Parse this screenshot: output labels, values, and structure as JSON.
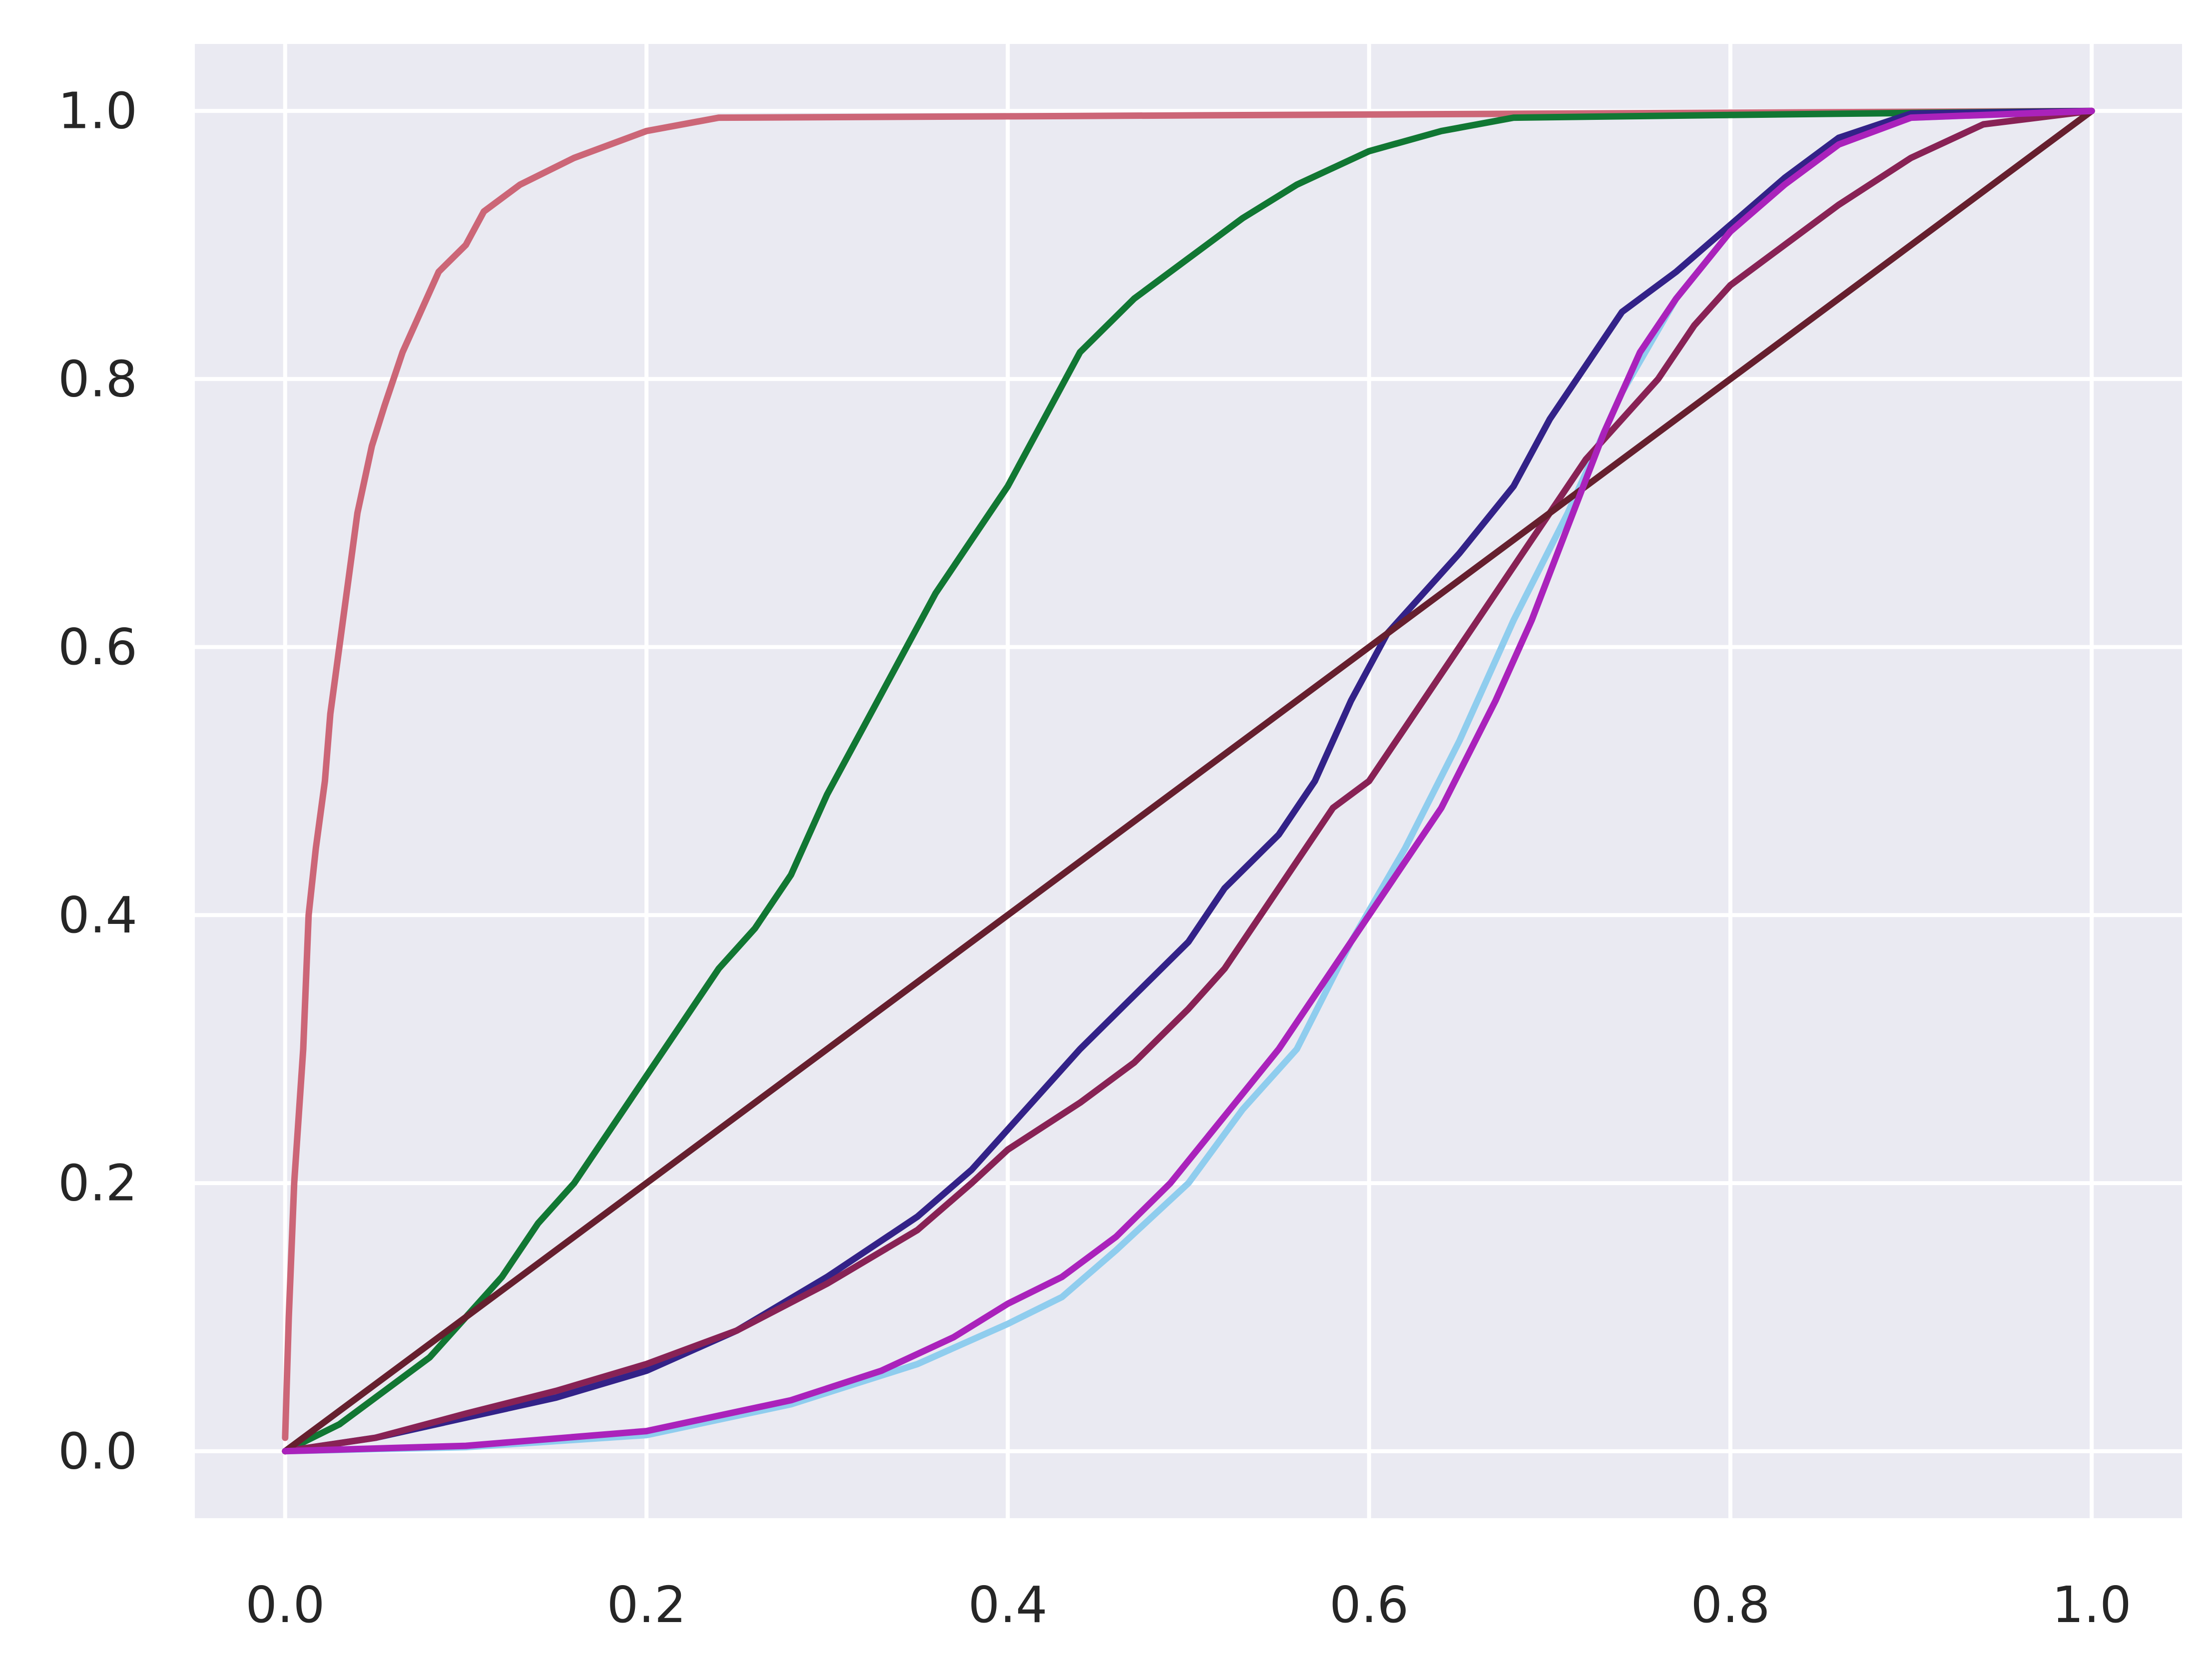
{
  "chart_data": {
    "type": "line",
    "title": "",
    "xlabel": "",
    "ylabel": "",
    "xlim": [
      -0.05,
      1.05
    ],
    "ylim": [
      -0.05,
      1.05
    ],
    "grid": true,
    "legend": "none",
    "style": {
      "background": "#eaeaf2",
      "grid_color": "#ffffff"
    },
    "x_ticks": [
      {
        "value": 0.0,
        "label": "0.0"
      },
      {
        "value": 0.2,
        "label": "0.2"
      },
      {
        "value": 0.4,
        "label": "0.4"
      },
      {
        "value": 0.6,
        "label": "0.6"
      },
      {
        "value": 0.8,
        "label": "0.8"
      },
      {
        "value": 1.0,
        "label": "1.0"
      }
    ],
    "y_ticks": [
      {
        "value": 0.0,
        "label": "0.0"
      },
      {
        "value": 0.2,
        "label": "0.2"
      },
      {
        "value": 0.4,
        "label": "0.4"
      },
      {
        "value": 0.6,
        "label": "0.6"
      },
      {
        "value": 0.8,
        "label": "0.8"
      },
      {
        "value": 1.0,
        "label": "1.0"
      }
    ],
    "series": [
      {
        "color": "#8fcdee",
        "points": [
          [
            0.0,
            0.0
          ],
          [
            0.1,
            0.003
          ],
          [
            0.2,
            0.012
          ],
          [
            0.28,
            0.035
          ],
          [
            0.35,
            0.065
          ],
          [
            0.4,
            0.095
          ],
          [
            0.43,
            0.115
          ],
          [
            0.46,
            0.15
          ],
          [
            0.5,
            0.2
          ],
          [
            0.53,
            0.255
          ],
          [
            0.56,
            0.3
          ],
          [
            0.59,
            0.38
          ],
          [
            0.62,
            0.45
          ],
          [
            0.65,
            0.53
          ],
          [
            0.68,
            0.62
          ],
          [
            0.71,
            0.7
          ],
          [
            0.74,
            0.79
          ],
          [
            0.77,
            0.86
          ],
          [
            0.8,
            0.91
          ],
          [
            0.83,
            0.95
          ],
          [
            0.86,
            0.98
          ],
          [
            0.9,
            0.995
          ],
          [
            1.0,
            1.0
          ]
        ]
      },
      {
        "color": "#cc6677",
        "points": [
          [
            0.0,
            0.01
          ],
          [
            0.002,
            0.1
          ],
          [
            0.005,
            0.2
          ],
          [
            0.01,
            0.3
          ],
          [
            0.013,
            0.4
          ],
          [
            0.017,
            0.45
          ],
          [
            0.022,
            0.5
          ],
          [
            0.025,
            0.55
          ],
          [
            0.03,
            0.6
          ],
          [
            0.035,
            0.65
          ],
          [
            0.04,
            0.7
          ],
          [
            0.048,
            0.75
          ],
          [
            0.055,
            0.78
          ],
          [
            0.065,
            0.82
          ],
          [
            0.075,
            0.85
          ],
          [
            0.085,
            0.88
          ],
          [
            0.1,
            0.9
          ],
          [
            0.11,
            0.925
          ],
          [
            0.13,
            0.945
          ],
          [
            0.16,
            0.965
          ],
          [
            0.2,
            0.985
          ],
          [
            0.24,
            0.995
          ],
          [
            0.4,
            0.996
          ],
          [
            0.7,
            0.998
          ],
          [
            1.0,
            1.0
          ]
        ]
      },
      {
        "color": "#117733",
        "points": [
          [
            0.0,
            0.0
          ],
          [
            0.03,
            0.02
          ],
          [
            0.05,
            0.04
          ],
          [
            0.08,
            0.07
          ],
          [
            0.1,
            0.1
          ],
          [
            0.12,
            0.13
          ],
          [
            0.14,
            0.17
          ],
          [
            0.16,
            0.2
          ],
          [
            0.18,
            0.24
          ],
          [
            0.2,
            0.28
          ],
          [
            0.22,
            0.32
          ],
          [
            0.24,
            0.36
          ],
          [
            0.26,
            0.39
          ],
          [
            0.28,
            0.43
          ],
          [
            0.3,
            0.49
          ],
          [
            0.32,
            0.54
          ],
          [
            0.34,
            0.59
          ],
          [
            0.36,
            0.64
          ],
          [
            0.38,
            0.68
          ],
          [
            0.4,
            0.72
          ],
          [
            0.42,
            0.77
          ],
          [
            0.44,
            0.82
          ],
          [
            0.47,
            0.86
          ],
          [
            0.5,
            0.89
          ],
          [
            0.53,
            0.92
          ],
          [
            0.56,
            0.945
          ],
          [
            0.6,
            0.97
          ],
          [
            0.64,
            0.985
          ],
          [
            0.68,
            0.995
          ],
          [
            0.8,
            0.997
          ],
          [
            1.0,
            1.0
          ]
        ]
      },
      {
        "color": "#332288",
        "points": [
          [
            0.0,
            0.0
          ],
          [
            0.05,
            0.01
          ],
          [
            0.1,
            0.025
          ],
          [
            0.15,
            0.04
          ],
          [
            0.2,
            0.06
          ],
          [
            0.25,
            0.09
          ],
          [
            0.3,
            0.13
          ],
          [
            0.35,
            0.175
          ],
          [
            0.38,
            0.21
          ],
          [
            0.4,
            0.24
          ],
          [
            0.42,
            0.27
          ],
          [
            0.44,
            0.3
          ],
          [
            0.47,
            0.34
          ],
          [
            0.5,
            0.38
          ],
          [
            0.52,
            0.42
          ],
          [
            0.55,
            0.46
          ],
          [
            0.57,
            0.5
          ],
          [
            0.59,
            0.56
          ],
          [
            0.61,
            0.61
          ],
          [
            0.63,
            0.64
          ],
          [
            0.65,
            0.67
          ],
          [
            0.68,
            0.72
          ],
          [
            0.7,
            0.77
          ],
          [
            0.72,
            0.81
          ],
          [
            0.74,
            0.85
          ],
          [
            0.77,
            0.88
          ],
          [
            0.8,
            0.915
          ],
          [
            0.83,
            0.95
          ],
          [
            0.86,
            0.98
          ],
          [
            0.9,
            0.998
          ],
          [
            1.0,
            1.0
          ]
        ]
      },
      {
        "color": "#882255",
        "points": [
          [
            0.0,
            0.0
          ],
          [
            0.05,
            0.01
          ],
          [
            0.1,
            0.028
          ],
          [
            0.15,
            0.045
          ],
          [
            0.2,
            0.065
          ],
          [
            0.25,
            0.09
          ],
          [
            0.3,
            0.125
          ],
          [
            0.35,
            0.165
          ],
          [
            0.38,
            0.2
          ],
          [
            0.4,
            0.225
          ],
          [
            0.44,
            0.26
          ],
          [
            0.47,
            0.29
          ],
          [
            0.5,
            0.33
          ],
          [
            0.52,
            0.36
          ],
          [
            0.54,
            0.4
          ],
          [
            0.56,
            0.44
          ],
          [
            0.58,
            0.48
          ],
          [
            0.6,
            0.5
          ],
          [
            0.62,
            0.54
          ],
          [
            0.64,
            0.58
          ],
          [
            0.66,
            0.62
          ],
          [
            0.68,
            0.66
          ],
          [
            0.7,
            0.7
          ],
          [
            0.72,
            0.74
          ],
          [
            0.74,
            0.77
          ],
          [
            0.76,
            0.8
          ],
          [
            0.78,
            0.84
          ],
          [
            0.8,
            0.87
          ],
          [
            0.83,
            0.9
          ],
          [
            0.86,
            0.93
          ],
          [
            0.9,
            0.965
          ],
          [
            0.94,
            0.99
          ],
          [
            1.0,
            1.0
          ]
        ]
      },
      {
        "color": "#661f2e",
        "points": [
          [
            0.0,
            0.0
          ],
          [
            1.0,
            1.0
          ]
        ]
      },
      {
        "color": "#aa22bb",
        "points": [
          [
            0.0,
            0.0
          ],
          [
            0.1,
            0.004
          ],
          [
            0.2,
            0.015
          ],
          [
            0.28,
            0.038
          ],
          [
            0.33,
            0.06
          ],
          [
            0.37,
            0.085
          ],
          [
            0.4,
            0.11
          ],
          [
            0.43,
            0.13
          ],
          [
            0.46,
            0.16
          ],
          [
            0.49,
            0.2
          ],
          [
            0.52,
            0.25
          ],
          [
            0.55,
            0.3
          ],
          [
            0.58,
            0.36
          ],
          [
            0.61,
            0.42
          ],
          [
            0.64,
            0.48
          ],
          [
            0.67,
            0.56
          ],
          [
            0.69,
            0.62
          ],
          [
            0.71,
            0.69
          ],
          [
            0.73,
            0.76
          ],
          [
            0.75,
            0.82
          ],
          [
            0.77,
            0.86
          ],
          [
            0.8,
            0.91
          ],
          [
            0.83,
            0.945
          ],
          [
            0.86,
            0.975
          ],
          [
            0.9,
            0.995
          ],
          [
            1.0,
            1.0
          ]
        ]
      }
    ]
  }
}
